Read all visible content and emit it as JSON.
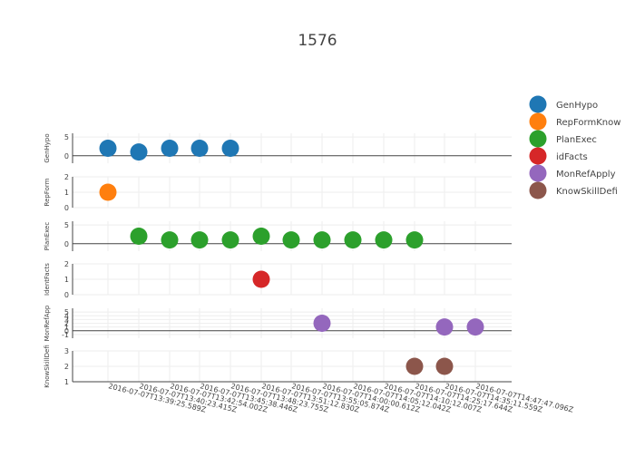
{
  "chart_data": {
    "type": "scatter",
    "title": "1576",
    "x": [
      "2016-07-07T13:39:25.589Z",
      "2016-07-07T13:40:23.415Z",
      "2016-07-07T13:42:54.002Z",
      "2016-07-07T13:45:38.446Z",
      "2016-07-07T13:48:23.755Z",
      "2016-07-07T13:51:12.830Z",
      "2016-07-07T13:55:05.874Z",
      "2016-07-07T14:00:00.612Z",
      "2016-07-07T14:05:12.042Z",
      "2016-07-07T14:10:12.007Z",
      "2016-07-07T14:25:17.644Z",
      "2016-07-07T14:35:11.559Z",
      "2016-07-07T14:47:47.096Z"
    ],
    "x_tick_labels": [
      "2016-07-07T13:39:25.589Z",
      "2016-07-07T13:40:23.415Z",
      "2016-07-07T13:42:54.002Z",
      "2016-07-07T13:45:38.446Z",
      "2016-07-07T13:48:23.755Z",
      "2016-07-07T13:51:12.830Z",
      "2016-07-07T13:55:05.874Z",
      "2016-07-07T14:00:00.612Z",
      "2016-07-07T14:05:12.042Z",
      "2016-07-07T14:10:12.007Z",
      "2016-07-07T14:25:17.644Z",
      "2016-07-07T14:35:11.559Z",
      "2016-07-07T14:47:47.096Z"
    ],
    "legend_position": "right",
    "grid": true,
    "series": [
      {
        "name": "GenHypo",
        "ylabel": "GenHypo",
        "color": "#1f77b4",
        "ylim": [
          -2,
          6
        ],
        "yticks": [
          0,
          5
        ],
        "points": [
          [
            0,
            2
          ],
          [
            1,
            1
          ],
          [
            2,
            2
          ],
          [
            3,
            2
          ],
          [
            4,
            2
          ]
        ]
      },
      {
        "name": "RepFormKnow",
        "ylabel": "RepForm",
        "color": "#ff7f0e",
        "ylim": [
          0,
          2
        ],
        "yticks": [
          0,
          1,
          2
        ],
        "points": [
          [
            0,
            1
          ]
        ]
      },
      {
        "name": "PlanExec",
        "ylabel": "PlanExec",
        "color": "#2ca02c",
        "ylim": [
          -2,
          6
        ],
        "yticks": [
          0,
          5
        ],
        "points": [
          [
            1,
            2
          ],
          [
            2,
            1
          ],
          [
            3,
            1
          ],
          [
            4,
            1
          ],
          [
            5,
            2
          ],
          [
            6,
            1
          ],
          [
            7,
            1
          ],
          [
            8,
            1
          ],
          [
            9,
            1
          ],
          [
            10,
            1
          ]
        ]
      },
      {
        "name": "idFacts",
        "ylabel": "IdentFacts",
        "color": "#d62728",
        "ylim": [
          0,
          2
        ],
        "yticks": [
          0,
          1,
          2
        ],
        "points": [
          [
            5,
            1
          ]
        ]
      },
      {
        "name": "MonRefApply",
        "ylabel": "MonRefApp",
        "color": "#9467bd",
        "ylim": [
          -2,
          6
        ],
        "yticks": [
          -1,
          0,
          1,
          2,
          3,
          4,
          5
        ],
        "points": [
          [
            7,
            2
          ],
          [
            11,
            1
          ],
          [
            12,
            1
          ]
        ]
      },
      {
        "name": "KnowSkillDefi",
        "ylabel": "KnowSkillDefi",
        "color": "#8c564b",
        "ylim": [
          1,
          3
        ],
        "yticks": [
          1,
          2,
          3
        ],
        "points": [
          [
            10,
            2
          ],
          [
            11,
            2
          ]
        ]
      }
    ]
  }
}
